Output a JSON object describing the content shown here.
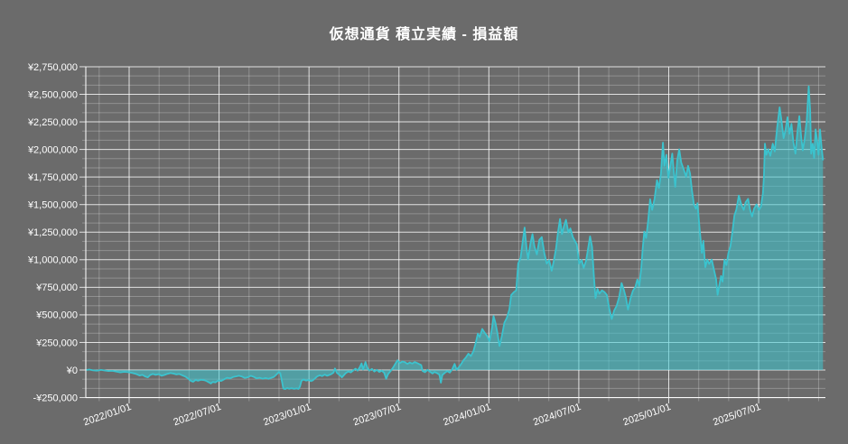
{
  "page": {
    "background_color": "#6b6b6b",
    "text_color": "#ffffff"
  },
  "header": {
    "title": "仮想通貨 積立実績 - 損益額"
  },
  "chart_data": {
    "type": "area",
    "title": "仮想通貨 積立実績 - 損益額",
    "legend": "none",
    "grid": "on",
    "series_name": "損益額",
    "colors": {
      "line": "#3bc3ce",
      "fill": "rgba(62,200,210,0.55)",
      "grid_major": "rgba(255,255,255,0.8)",
      "grid_minor": "rgba(255,255,255,0.25)",
      "axis": "rgba(255,255,255,0.85)",
      "label": "#ffffff",
      "background": "#6b6b6b"
    },
    "y_axis": {
      "min": -250000,
      "max": 2750000,
      "major_step": 250000,
      "minor_divisions_per_major": 3,
      "tick_labels": [
        "-¥250,000",
        "¥0",
        "¥250,000",
        "¥500,000",
        "¥750,000",
        "¥1,000,000",
        "¥1,250,000",
        "¥1,500,000",
        "¥1,750,000",
        "¥2,000,000",
        "¥2,250,000",
        "¥2,500,000",
        "¥2,750,000"
      ]
    },
    "x_axis": {
      "tick_labels": [
        "2022/01/01",
        "2022/07/01",
        "2023/01/01",
        "2023/07/01",
        "2024/01/01",
        "2024/07/01",
        "2025/01/01",
        "2025/07/01"
      ],
      "major_step_months": 6,
      "minor_step_months": 2,
      "range_start": "2021-10-06",
      "range_end": "2025-11-10",
      "label_rotation_deg": -19
    },
    "points": [
      [
        "2021-10-06",
        0
      ],
      [
        "2021-10-12",
        4000
      ],
      [
        "2021-10-20",
        -3000
      ],
      [
        "2021-10-28",
        -6000
      ],
      [
        "2021-11-05",
        1000
      ],
      [
        "2021-11-12",
        -4000
      ],
      [
        "2021-11-20",
        -9000
      ],
      [
        "2021-11-28",
        -7000
      ],
      [
        "2021-12-06",
        -14000
      ],
      [
        "2021-12-14",
        -21000
      ],
      [
        "2021-12-22",
        -16000
      ],
      [
        "2021-12-30",
        -20000
      ],
      [
        "2022-01-07",
        -26000
      ],
      [
        "2022-01-14",
        -34000
      ],
      [
        "2022-01-22",
        -50000
      ],
      [
        "2022-01-28",
        -44000
      ],
      [
        "2022-02-03",
        -60000
      ],
      [
        "2022-02-08",
        -66000
      ],
      [
        "2022-02-13",
        -45000
      ],
      [
        "2022-02-18",
        -36000
      ],
      [
        "2022-02-24",
        -44000
      ],
      [
        "2022-03-02",
        -38000
      ],
      [
        "2022-03-08",
        -52000
      ],
      [
        "2022-03-14",
        -44000
      ],
      [
        "2022-03-20",
        -34000
      ],
      [
        "2022-03-26",
        -28000
      ],
      [
        "2022-04-01",
        -33000
      ],
      [
        "2022-04-07",
        -40000
      ],
      [
        "2022-04-13",
        -36000
      ],
      [
        "2022-04-19",
        -48000
      ],
      [
        "2022-04-25",
        -60000
      ],
      [
        "2022-05-01",
        -78000
      ],
      [
        "2022-05-06",
        -98000
      ],
      [
        "2022-05-11",
        -106000
      ],
      [
        "2022-05-16",
        -90000
      ],
      [
        "2022-05-21",
        -97000
      ],
      [
        "2022-05-27",
        -88000
      ],
      [
        "2022-06-02",
        -92000
      ],
      [
        "2022-06-07",
        -100000
      ],
      [
        "2022-06-12",
        -112000
      ],
      [
        "2022-06-16",
        -122000
      ],
      [
        "2022-06-20",
        -108000
      ],
      [
        "2022-06-25",
        -113000
      ],
      [
        "2022-07-01",
        -96000
      ],
      [
        "2022-07-07",
        -99000
      ],
      [
        "2022-07-13",
        -84000
      ],
      [
        "2022-07-19",
        -70000
      ],
      [
        "2022-07-25",
        -76000
      ],
      [
        "2022-07-31",
        -64000
      ],
      [
        "2022-08-06",
        -58000
      ],
      [
        "2022-08-12",
        -52000
      ],
      [
        "2022-08-18",
        -60000
      ],
      [
        "2022-08-24",
        -72000
      ],
      [
        "2022-08-30",
        -66000
      ],
      [
        "2022-09-05",
        -52000
      ],
      [
        "2022-09-11",
        -62000
      ],
      [
        "2022-09-17",
        -76000
      ],
      [
        "2022-09-23",
        -70000
      ],
      [
        "2022-09-29",
        -79000
      ],
      [
        "2022-10-05",
        -73000
      ],
      [
        "2022-10-11",
        -80000
      ],
      [
        "2022-10-17",
        -70000
      ],
      [
        "2022-10-22",
        -62000
      ],
      [
        "2022-10-27",
        -42000
      ],
      [
        "2022-11-01",
        -18000
      ],
      [
        "2022-11-04",
        -30000
      ],
      [
        "2022-11-07",
        -95000
      ],
      [
        "2022-11-10",
        -168000
      ],
      [
        "2022-11-14",
        -173000
      ],
      [
        "2022-11-18",
        -164000
      ],
      [
        "2022-11-22",
        -170000
      ],
      [
        "2022-11-27",
        -166000
      ],
      [
        "2022-12-02",
        -171000
      ],
      [
        "2022-12-07",
        -167000
      ],
      [
        "2022-12-11",
        -172000
      ],
      [
        "2022-12-14",
        -150000
      ],
      [
        "2022-12-17",
        -98000
      ],
      [
        "2022-12-21",
        -86000
      ],
      [
        "2022-12-26",
        -96000
      ],
      [
        "2022-12-31",
        -91000
      ],
      [
        "2023-01-05",
        -101000
      ],
      [
        "2023-01-09",
        -94000
      ],
      [
        "2023-01-13",
        -78000
      ],
      [
        "2023-01-18",
        -58000
      ],
      [
        "2023-01-23",
        -48000
      ],
      [
        "2023-01-28",
        -56000
      ],
      [
        "2023-02-02",
        -42000
      ],
      [
        "2023-02-07",
        -52000
      ],
      [
        "2023-02-12",
        -44000
      ],
      [
        "2023-02-16",
        -36000
      ],
      [
        "2023-02-20",
        -24000
      ],
      [
        "2023-02-23",
        14000
      ],
      [
        "2023-02-27",
        -26000
      ],
      [
        "2023-03-04",
        -44000
      ],
      [
        "2023-03-09",
        -66000
      ],
      [
        "2023-03-13",
        -48000
      ],
      [
        "2023-03-17",
        -28000
      ],
      [
        "2023-03-22",
        -14000
      ],
      [
        "2023-03-27",
        -22000
      ],
      [
        "2023-04-01",
        -4000
      ],
      [
        "2023-04-06",
        12000
      ],
      [
        "2023-04-10",
        -6000
      ],
      [
        "2023-04-14",
        22000
      ],
      [
        "2023-04-18",
        60000
      ],
      [
        "2023-04-21",
        4000
      ],
      [
        "2023-04-26",
        73000
      ],
      [
        "2023-04-30",
        18000
      ],
      [
        "2023-05-04",
        -6000
      ],
      [
        "2023-05-09",
        10000
      ],
      [
        "2023-05-14",
        -14000
      ],
      [
        "2023-05-19",
        2000
      ],
      [
        "2023-05-24",
        -18000
      ],
      [
        "2023-05-29",
        -6000
      ],
      [
        "2023-06-03",
        -26000
      ],
      [
        "2023-06-07",
        -80000
      ],
      [
        "2023-06-11",
        -36000
      ],
      [
        "2023-06-16",
        -10000
      ],
      [
        "2023-06-21",
        22000
      ],
      [
        "2023-06-26",
        60000
      ],
      [
        "2023-06-30",
        88000
      ],
      [
        "2023-07-05",
        64000
      ],
      [
        "2023-07-10",
        78000
      ],
      [
        "2023-07-15",
        70000
      ],
      [
        "2023-07-20",
        56000
      ],
      [
        "2023-07-25",
        68000
      ],
      [
        "2023-07-30",
        59000
      ],
      [
        "2023-08-04",
        72000
      ],
      [
        "2023-08-09",
        63000
      ],
      [
        "2023-08-13",
        54000
      ],
      [
        "2023-08-17",
        44000
      ],
      [
        "2023-08-20",
        -10000
      ],
      [
        "2023-08-25",
        -20000
      ],
      [
        "2023-08-30",
        2000
      ],
      [
        "2023-09-04",
        -16000
      ],
      [
        "2023-09-09",
        -32000
      ],
      [
        "2023-09-13",
        -18000
      ],
      [
        "2023-09-18",
        -28000
      ],
      [
        "2023-09-23",
        -42000
      ],
      [
        "2023-09-26",
        -115000
      ],
      [
        "2023-09-29",
        -46000
      ],
      [
        "2023-10-04",
        -26000
      ],
      [
        "2023-10-09",
        -10000
      ],
      [
        "2023-10-14",
        -24000
      ],
      [
        "2023-10-19",
        6000
      ],
      [
        "2023-10-24",
        56000
      ],
      [
        "2023-10-28",
        2000
      ],
      [
        "2023-11-02",
        28000
      ],
      [
        "2023-11-07",
        60000
      ],
      [
        "2023-11-11",
        88000
      ],
      [
        "2023-11-16",
        115000
      ],
      [
        "2023-11-21",
        148000
      ],
      [
        "2023-11-26",
        126000
      ],
      [
        "2023-12-01",
        170000
      ],
      [
        "2023-12-06",
        250000
      ],
      [
        "2023-12-10",
        330000
      ],
      [
        "2023-12-14",
        298000
      ],
      [
        "2023-12-19",
        372000
      ],
      [
        "2023-12-24",
        338000
      ],
      [
        "2023-12-29",
        308000
      ],
      [
        "2024-01-03",
        262000
      ],
      [
        "2024-01-08",
        385000
      ],
      [
        "2024-01-11",
        490000
      ],
      [
        "2024-01-15",
        425000
      ],
      [
        "2024-01-19",
        332000
      ],
      [
        "2024-01-23",
        218000
      ],
      [
        "2024-01-28",
        312000
      ],
      [
        "2024-02-02",
        430000
      ],
      [
        "2024-02-07",
        472000
      ],
      [
        "2024-02-12",
        548000
      ],
      [
        "2024-02-16",
        680000
      ],
      [
        "2024-02-21",
        705000
      ],
      [
        "2024-02-26",
        722000
      ],
      [
        "2024-03-01",
        965000
      ],
      [
        "2024-03-06",
        1020000
      ],
      [
        "2024-03-10",
        1160000
      ],
      [
        "2024-03-14",
        1292000
      ],
      [
        "2024-03-18",
        1110000
      ],
      [
        "2024-03-21",
        1005000
      ],
      [
        "2024-03-26",
        1150000
      ],
      [
        "2024-03-30",
        1232000
      ],
      [
        "2024-04-03",
        1120000
      ],
      [
        "2024-04-08",
        1048000
      ],
      [
        "2024-04-13",
        1180000
      ],
      [
        "2024-04-18",
        1205000
      ],
      [
        "2024-04-23",
        1062000
      ],
      [
        "2024-04-28",
        965000
      ],
      [
        "2024-05-03",
        996000
      ],
      [
        "2024-05-08",
        900000
      ],
      [
        "2024-05-13",
        1005000
      ],
      [
        "2024-05-17",
        1108000
      ],
      [
        "2024-05-21",
        1252000
      ],
      [
        "2024-05-25",
        1370000
      ],
      [
        "2024-05-29",
        1232000
      ],
      [
        "2024-06-02",
        1305000
      ],
      [
        "2024-06-06",
        1362000
      ],
      [
        "2024-06-11",
        1248000
      ],
      [
        "2024-06-15",
        1284000
      ],
      [
        "2024-06-20",
        1205000
      ],
      [
        "2024-06-24",
        1172000
      ],
      [
        "2024-06-28",
        1140000
      ],
      [
        "2024-07-03",
        966000
      ],
      [
        "2024-07-08",
        998000
      ],
      [
        "2024-07-12",
        926000
      ],
      [
        "2024-07-17",
        992000
      ],
      [
        "2024-07-21",
        1102000
      ],
      [
        "2024-07-25",
        1212000
      ],
      [
        "2024-07-29",
        1118000
      ],
      [
        "2024-08-02",
        842000
      ],
      [
        "2024-08-05",
        652000
      ],
      [
        "2024-08-09",
        736000
      ],
      [
        "2024-08-13",
        692000
      ],
      [
        "2024-08-18",
        722000
      ],
      [
        "2024-08-23",
        708000
      ],
      [
        "2024-08-28",
        682000
      ],
      [
        "2024-09-02",
        562000
      ],
      [
        "2024-09-07",
        462000
      ],
      [
        "2024-09-12",
        540000
      ],
      [
        "2024-09-17",
        582000
      ],
      [
        "2024-09-22",
        662000
      ],
      [
        "2024-09-27",
        788000
      ],
      [
        "2024-10-02",
        722000
      ],
      [
        "2024-10-06",
        652000
      ],
      [
        "2024-10-10",
        548000
      ],
      [
        "2024-10-15",
        648000
      ],
      [
        "2024-10-20",
        718000
      ],
      [
        "2024-10-25",
        752000
      ],
      [
        "2024-10-29",
        820000
      ],
      [
        "2024-11-02",
        762000
      ],
      [
        "2024-11-06",
        928000
      ],
      [
        "2024-11-09",
        1105000
      ],
      [
        "2024-11-12",
        1255000
      ],
      [
        "2024-11-16",
        1198000
      ],
      [
        "2024-11-20",
        1352000
      ],
      [
        "2024-11-24",
        1550000
      ],
      [
        "2024-11-28",
        1452000
      ],
      [
        "2024-12-03",
        1552000
      ],
      [
        "2024-12-08",
        1722000
      ],
      [
        "2024-12-12",
        1652000
      ],
      [
        "2024-12-16",
        1782000
      ],
      [
        "2024-12-20",
        2062000
      ],
      [
        "2024-12-23",
        1852000
      ],
      [
        "2024-12-27",
        1952000
      ],
      [
        "2024-12-31",
        1742000
      ],
      [
        "2025-01-04",
        1852000
      ],
      [
        "2025-01-08",
        1962000
      ],
      [
        "2025-01-11",
        1802000
      ],
      [
        "2025-01-14",
        1662000
      ],
      [
        "2025-01-18",
        1902000
      ],
      [
        "2025-01-22",
        2002000
      ],
      [
        "2025-01-26",
        1882000
      ],
      [
        "2025-01-31",
        1822000
      ],
      [
        "2025-02-05",
        1752000
      ],
      [
        "2025-02-09",
        1852000
      ],
      [
        "2025-02-13",
        1782000
      ],
      [
        "2025-02-17",
        1622000
      ],
      [
        "2025-02-21",
        1502000
      ],
      [
        "2025-02-25",
        1462000
      ],
      [
        "2025-02-28",
        1512000
      ],
      [
        "2025-03-05",
        1252000
      ],
      [
        "2025-03-09",
        1062000
      ],
      [
        "2025-03-12",
        1172000
      ],
      [
        "2025-03-16",
        932000
      ],
      [
        "2025-03-20",
        1002000
      ],
      [
        "2025-03-24",
        962000
      ],
      [
        "2025-03-29",
        1002000
      ],
      [
        "2025-04-03",
        902000
      ],
      [
        "2025-04-07",
        822000
      ],
      [
        "2025-04-10",
        682000
      ],
      [
        "2025-04-14",
        782000
      ],
      [
        "2025-04-17",
        852000
      ],
      [
        "2025-04-20",
        802000
      ],
      [
        "2025-04-24",
        1002000
      ],
      [
        "2025-04-28",
        952000
      ],
      [
        "2025-05-02",
        1062000
      ],
      [
        "2025-05-06",
        1122000
      ],
      [
        "2025-05-10",
        1252000
      ],
      [
        "2025-05-14",
        1402000
      ],
      [
        "2025-05-18",
        1452000
      ],
      [
        "2025-05-23",
        1582000
      ],
      [
        "2025-05-28",
        1502000
      ],
      [
        "2025-06-02",
        1452000
      ],
      [
        "2025-06-06",
        1522000
      ],
      [
        "2025-06-11",
        1552000
      ],
      [
        "2025-06-15",
        1452000
      ],
      [
        "2025-06-19",
        1392000
      ],
      [
        "2025-06-23",
        1462000
      ],
      [
        "2025-06-28",
        1502000
      ],
      [
        "2025-07-03",
        1452000
      ],
      [
        "2025-07-07",
        1482000
      ],
      [
        "2025-07-11",
        1602000
      ],
      [
        "2025-07-13",
        1752000
      ],
      [
        "2025-07-15",
        2052000
      ],
      [
        "2025-07-18",
        1952000
      ],
      [
        "2025-07-22",
        2002000
      ],
      [
        "2025-07-26",
        1942000
      ],
      [
        "2025-07-31",
        2052000
      ],
      [
        "2025-08-04",
        1982000
      ],
      [
        "2025-08-09",
        2202000
      ],
      [
        "2025-08-14",
        2382000
      ],
      [
        "2025-08-18",
        2252000
      ],
      [
        "2025-08-22",
        2102000
      ],
      [
        "2025-08-26",
        2182000
      ],
      [
        "2025-08-30",
        2292000
      ],
      [
        "2025-09-03",
        2142000
      ],
      [
        "2025-09-07",
        2232000
      ],
      [
        "2025-09-11",
        2062000
      ],
      [
        "2025-09-15",
        1962000
      ],
      [
        "2025-09-19",
        2152000
      ],
      [
        "2025-09-23",
        2302000
      ],
      [
        "2025-09-27",
        2102000
      ],
      [
        "2025-09-30",
        1992000
      ],
      [
        "2025-10-04",
        2102000
      ],
      [
        "2025-10-08",
        2262000
      ],
      [
        "2025-10-12",
        2572000
      ],
      [
        "2025-10-15",
        2352000
      ],
      [
        "2025-10-17",
        1962000
      ],
      [
        "2025-10-20",
        2052000
      ],
      [
        "2025-10-23",
        1922000
      ],
      [
        "2025-10-26",
        2182000
      ],
      [
        "2025-10-29",
        2082000
      ],
      [
        "2025-11-01",
        1952000
      ],
      [
        "2025-11-04",
        2182000
      ],
      [
        "2025-11-07",
        2022000
      ],
      [
        "2025-11-10",
        1902000
      ]
    ]
  }
}
